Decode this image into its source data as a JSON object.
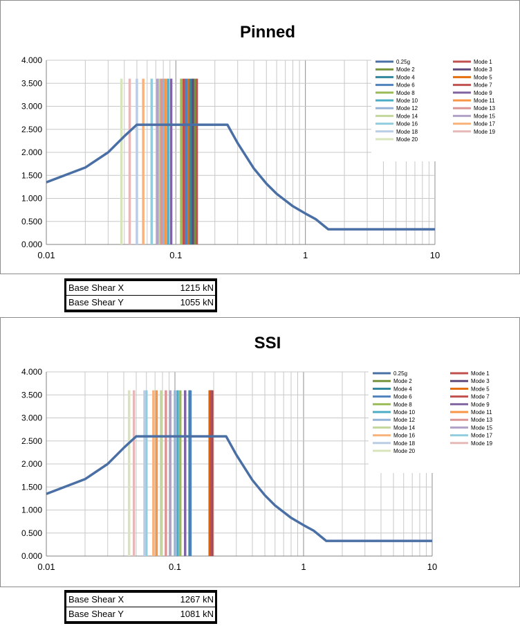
{
  "chart_data": [
    {
      "type": "line",
      "title": "Pinned",
      "xscale": "log",
      "xlim": [
        0.01,
        10
      ],
      "ylim": [
        0,
        4
      ],
      "grid": true,
      "legend_position": "top-right",
      "x_tick_labels": [
        "0.01",
        "0.1",
        "1",
        "10"
      ],
      "y_tick_labels": [
        "0.000",
        "0.500",
        "1.000",
        "1.500",
        "2.000",
        "2.500",
        "3.000",
        "3.500",
        "4.000"
      ],
      "series": [
        {
          "name": "0.25g",
          "color": "#4a6fa5",
          "type": "line",
          "x": [
            0.01,
            0.02,
            0.03,
            0.04,
            0.05,
            0.1,
            0.25,
            0.3,
            0.4,
            0.5,
            0.6,
            0.8,
            1.0,
            1.2,
            1.5,
            10
          ],
          "y": [
            1.35,
            1.67,
            2.0,
            2.35,
            2.6,
            2.6,
            2.6,
            2.2,
            1.65,
            1.32,
            1.1,
            0.83,
            0.67,
            0.55,
            0.33,
            0.33
          ]
        },
        {
          "name": "Mode 1",
          "color": "#c0504d",
          "x": 0.145,
          "y": 3.6
        },
        {
          "name": "Mode 2",
          "color": "#77933c",
          "x": 0.14,
          "y": 3.6
        },
        {
          "name": "Mode 3",
          "color": "#604a7b",
          "x": 0.135,
          "y": 3.6
        },
        {
          "name": "Mode 4",
          "color": "#31859c",
          "x": 0.13,
          "y": 3.6
        },
        {
          "name": "Mode 5",
          "color": "#e46c0a",
          "x": 0.125,
          "y": 3.6
        },
        {
          "name": "Mode 6",
          "color": "#4f81bd",
          "x": 0.12,
          "y": 3.6
        },
        {
          "name": "Mode 7",
          "color": "#c0504d",
          "x": 0.115,
          "y": 3.6
        },
        {
          "name": "Mode 8",
          "color": "#9bbb59",
          "x": 0.11,
          "y": 3.6
        },
        {
          "name": "Mode 9",
          "color": "#8064a2",
          "x": 0.092,
          "y": 3.6
        },
        {
          "name": "Mode 10",
          "color": "#4bacc6",
          "x": 0.087,
          "y": 3.6
        },
        {
          "name": "Mode 11",
          "color": "#f79646",
          "x": 0.083,
          "y": 3.6
        },
        {
          "name": "Mode 12",
          "color": "#95b3d7",
          "x": 0.08,
          "y": 3.6
        },
        {
          "name": "Mode 13",
          "color": "#d99694",
          "x": 0.077,
          "y": 3.6
        },
        {
          "name": "Mode 14",
          "color": "#c3d69b",
          "x": 0.074,
          "y": 3.6
        },
        {
          "name": "Mode 15",
          "color": "#b2a1c7",
          "x": 0.072,
          "y": 3.6
        },
        {
          "name": "Mode 16",
          "color": "#93cddd",
          "x": 0.065,
          "y": 3.6
        },
        {
          "name": "Mode 17",
          "color": "#fab27b",
          "x": 0.056,
          "y": 3.6
        },
        {
          "name": "Mode 18",
          "color": "#b9cde5",
          "x": 0.05,
          "y": 3.6
        },
        {
          "name": "Mode 19",
          "color": "#e6b9b8",
          "x": 0.044,
          "y": 3.6
        },
        {
          "name": "Mode 20",
          "color": "#d7e4bc",
          "x": 0.038,
          "y": 3.6
        }
      ]
    },
    {
      "type": "line",
      "title": "SSI",
      "xscale": "log",
      "xlim": [
        0.01,
        10
      ],
      "ylim": [
        0,
        4
      ],
      "grid": true,
      "legend_position": "top-right",
      "x_tick_labels": [
        "0.01",
        "0.1",
        "1",
        "10"
      ],
      "y_tick_labels": [
        "0.000",
        "0.500",
        "1.000",
        "1.500",
        "2.000",
        "2.500",
        "3.000",
        "3.500",
        "4.000"
      ],
      "series": [
        {
          "name": "0.25g",
          "color": "#4a6fa5",
          "type": "line",
          "x": [
            0.01,
            0.02,
            0.03,
            0.04,
            0.05,
            0.1,
            0.25,
            0.3,
            0.4,
            0.5,
            0.6,
            0.8,
            1.0,
            1.2,
            1.5,
            10
          ],
          "y": [
            1.35,
            1.67,
            2.0,
            2.35,
            2.6,
            2.6,
            2.6,
            2.2,
            1.65,
            1.32,
            1.1,
            0.83,
            0.67,
            0.55,
            0.33,
            0.33
          ]
        },
        {
          "name": "Mode 1",
          "color": "#c0504d",
          "x": 0.195,
          "y": 3.6
        },
        {
          "name": "Mode 2",
          "color": "#77933c",
          "x": 0.188,
          "y": 3.6
        },
        {
          "name": "Mode 3",
          "color": "#604a7b",
          "x": 0.192,
          "y": 3.6
        },
        {
          "name": "Mode 4",
          "color": "#31859c",
          "x": 0.13,
          "y": 3.6
        },
        {
          "name": "Mode 5",
          "color": "#e46c0a",
          "x": 0.186,
          "y": 3.6
        },
        {
          "name": "Mode 6",
          "color": "#4f81bd",
          "x": 0.132,
          "y": 3.6
        },
        {
          "name": "Mode 7",
          "color": "#c0504d",
          "x": 0.19,
          "y": 3.6
        },
        {
          "name": "Mode 8",
          "color": "#9bbb59",
          "x": 0.11,
          "y": 3.6
        },
        {
          "name": "Mode 9",
          "color": "#8064a2",
          "x": 0.12,
          "y": 3.6
        },
        {
          "name": "Mode 10",
          "color": "#4bacc6",
          "x": 0.105,
          "y": 3.6
        },
        {
          "name": "Mode 11",
          "color": "#f79646",
          "x": 0.072,
          "y": 3.6
        },
        {
          "name": "Mode 12",
          "color": "#95b3d7",
          "x": 0.1,
          "y": 3.6
        },
        {
          "name": "Mode 13",
          "color": "#d99694",
          "x": 0.085,
          "y": 3.6
        },
        {
          "name": "Mode 14",
          "color": "#c3d69b",
          "x": 0.078,
          "y": 3.6
        },
        {
          "name": "Mode 15",
          "color": "#b2a1c7",
          "x": 0.092,
          "y": 3.6
        },
        {
          "name": "Mode 16",
          "color": "#fab27b",
          "x": 0.068,
          "y": 3.6
        },
        {
          "name": "Mode 17",
          "color": "#93cddd",
          "x": 0.06,
          "y": 3.6
        },
        {
          "name": "Mode 18",
          "color": "#b9cde5",
          "x": 0.058,
          "y": 3.6
        },
        {
          "name": "Mode 19",
          "color": "#e6b9b8",
          "x": 0.048,
          "y": 3.6
        },
        {
          "name": "Mode 20",
          "color": "#d7e4bc",
          "x": 0.044,
          "y": 3.6
        }
      ]
    }
  ],
  "results": [
    {
      "rows": [
        {
          "label": "Base Shear X",
          "value": "1215 kN"
        },
        {
          "label": "Base Shear Y",
          "value": "1055 kN"
        }
      ]
    },
    {
      "rows": [
        {
          "label": "Base Shear X",
          "value": "1267 kN"
        },
        {
          "label": "Base Shear Y",
          "value": "1081 kN"
        }
      ]
    }
  ]
}
